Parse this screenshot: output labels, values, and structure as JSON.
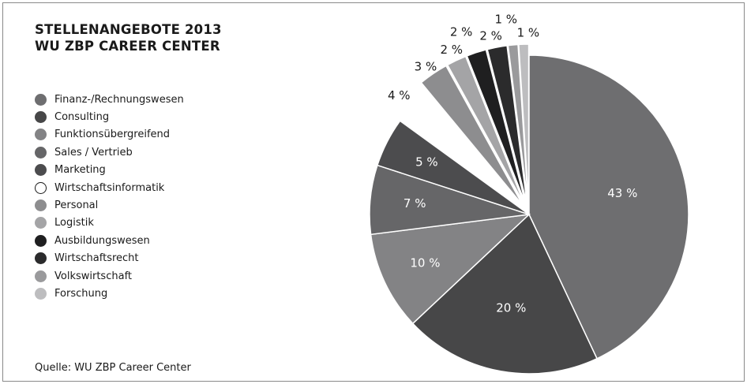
{
  "chart_data": {
    "type": "pie",
    "title_lines": [
      "STELLENANGEBOTE 2013",
      "WU ZBP CAREER CENTER"
    ],
    "source": "Quelle: WU ZBP Career Center",
    "slices": [
      {
        "name": "Finanz-/Rechnungswesen",
        "value": 43,
        "label": "43 %",
        "color": "#6e6e70",
        "exploded": false,
        "label_color": "#ffffff"
      },
      {
        "name": "Consulting",
        "value": 20,
        "label": "20 %",
        "color": "#474748",
        "exploded": false,
        "label_color": "#ffffff"
      },
      {
        "name": "Funktionsübergreifend",
        "value": 10,
        "label": "10 %",
        "color": "#838385",
        "exploded": false,
        "label_color": "#ffffff"
      },
      {
        "name": "Sales / Vertrieb",
        "value": 7,
        "label": "7 %",
        "color": "#666668",
        "exploded": false,
        "label_color": "#ffffff"
      },
      {
        "name": "Marketing",
        "value": 5,
        "label": "5 %",
        "color": "#4c4c4e",
        "exploded": false,
        "label_color": "#ffffff"
      },
      {
        "name": "Wirtschaftsinformatik",
        "value": 4,
        "label": "4 %",
        "color": "#ffffff",
        "exploded": true,
        "label_color": "#1a1a1a"
      },
      {
        "name": "Personal",
        "value": 3,
        "label": "3 %",
        "color": "#8d8d8f",
        "exploded": true,
        "label_color": "#1a1a1a"
      },
      {
        "name": "Logistik",
        "value": 2,
        "label": "2 %",
        "color": "#a4a4a6",
        "exploded": true,
        "label_color": "#1a1a1a"
      },
      {
        "name": "Ausbildungswesen",
        "value": 2,
        "label": "2 %",
        "color": "#1f1f20",
        "exploded": true,
        "label_color": "#1a1a1a"
      },
      {
        "name": "Wirtschaftsrecht",
        "value": 2,
        "label": "2 %",
        "color": "#2b2b2c",
        "exploded": true,
        "label_color": "#1a1a1a"
      },
      {
        "name": "Volkswirtschaft",
        "value": 1,
        "label": "1 %",
        "color": "#9a9a9c",
        "exploded": true,
        "label_color": "#1a1a1a"
      },
      {
        "name": "Forschung",
        "value": 1,
        "label": "1 %",
        "color": "#bdbdbf",
        "exploded": true,
        "label_color": "#1a1a1a"
      }
    ],
    "legend_placement": "left"
  }
}
